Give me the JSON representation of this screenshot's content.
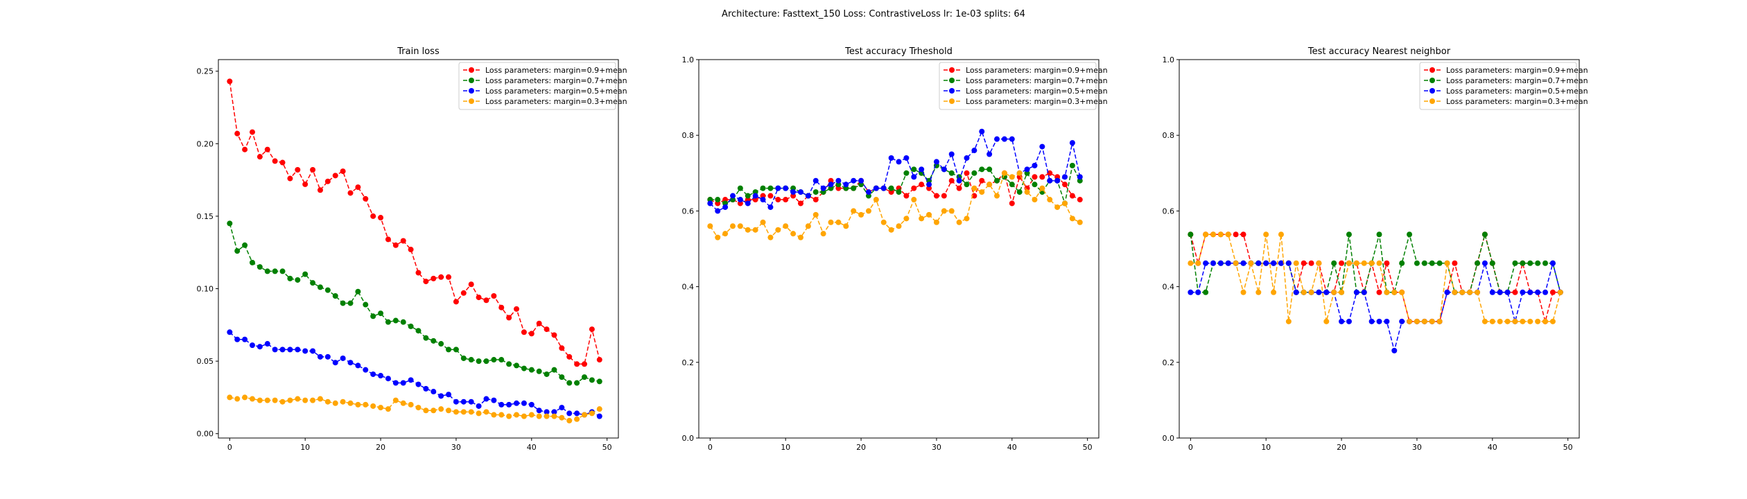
{
  "figure": {
    "suptitle": "Architecture: Fasttext_150 Loss: ContrastiveLoss lr: 1e-03 splits: 64"
  },
  "chart_data": [
    {
      "type": "line",
      "title": "Train loss",
      "xlim": [
        -1.5,
        51.5
      ],
      "ylim": [
        -0.003,
        0.258
      ],
      "xticks": [
        0,
        10,
        20,
        30,
        40,
        50
      ],
      "xtick_labels": [
        "0",
        "10",
        "20",
        "30",
        "40",
        "50"
      ],
      "yticks": [
        0.0,
        0.05,
        0.1,
        0.15,
        0.2,
        0.25
      ],
      "ytick_labels": [
        "0.00",
        "0.05",
        "0.10",
        "0.15",
        "0.20",
        "0.25"
      ],
      "legend_position": "top-right",
      "series": [
        {
          "name": "Loss parameters: margin=0.9+mean",
          "color": "#ff0000",
          "values": [
            0.243,
            0.207,
            0.196,
            0.208,
            0.191,
            0.196,
            0.188,
            0.187,
            0.176,
            0.182,
            0.172,
            0.182,
            0.168,
            0.174,
            0.178,
            0.181,
            0.166,
            0.17,
            0.162,
            0.15,
            0.149,
            0.134,
            0.13,
            0.133,
            0.127,
            0.111,
            0.105,
            0.107,
            0.108,
            0.108,
            0.091,
            0.097,
            0.103,
            0.094,
            0.092,
            0.095,
            0.087,
            0.08,
            0.086,
            0.07,
            0.069,
            0.076,
            0.072,
            0.068,
            0.059,
            0.053,
            0.048,
            0.048,
            0.072,
            0.051
          ]
        },
        {
          "name": "Loss parameters: margin=0.7+mean",
          "color": "#008000",
          "values": [
            0.145,
            0.126,
            0.13,
            0.118,
            0.115,
            0.112,
            0.112,
            0.112,
            0.107,
            0.106,
            0.11,
            0.104,
            0.101,
            0.099,
            0.095,
            0.09,
            0.09,
            0.098,
            0.089,
            0.081,
            0.083,
            0.077,
            0.078,
            0.077,
            0.074,
            0.071,
            0.066,
            0.064,
            0.062,
            0.058,
            0.058,
            0.052,
            0.051,
            0.05,
            0.05,
            0.051,
            0.051,
            0.048,
            0.047,
            0.045,
            0.044,
            0.043,
            0.041,
            0.044,
            0.039,
            0.035,
            0.035,
            0.039,
            0.037,
            0.036
          ]
        },
        {
          "name": "Loss parameters: margin=0.5+mean",
          "color": "#0000ff",
          "values": [
            0.07,
            0.065,
            0.065,
            0.061,
            0.06,
            0.062,
            0.058,
            0.058,
            0.058,
            0.058,
            0.057,
            0.057,
            0.053,
            0.053,
            0.049,
            0.052,
            0.049,
            0.047,
            0.044,
            0.041,
            0.04,
            0.038,
            0.035,
            0.035,
            0.037,
            0.034,
            0.031,
            0.029,
            0.026,
            0.027,
            0.022,
            0.022,
            0.022,
            0.019,
            0.024,
            0.023,
            0.02,
            0.02,
            0.021,
            0.021,
            0.02,
            0.016,
            0.015,
            0.015,
            0.018,
            0.014,
            0.014,
            0.013,
            0.015,
            0.012
          ]
        },
        {
          "name": "Loss parameters: margin=0.3+mean",
          "color": "#ffa500",
          "values": [
            0.025,
            0.024,
            0.025,
            0.024,
            0.023,
            0.023,
            0.023,
            0.022,
            0.023,
            0.024,
            0.023,
            0.023,
            0.024,
            0.022,
            0.021,
            0.022,
            0.021,
            0.02,
            0.02,
            0.019,
            0.018,
            0.017,
            0.023,
            0.021,
            0.02,
            0.018,
            0.016,
            0.016,
            0.017,
            0.016,
            0.015,
            0.015,
            0.015,
            0.014,
            0.015,
            0.013,
            0.013,
            0.012,
            0.013,
            0.012,
            0.013,
            0.012,
            0.012,
            0.012,
            0.011,
            0.009,
            0.01,
            0.013,
            0.014,
            0.017
          ]
        }
      ]
    },
    {
      "type": "line",
      "title": "Test accuracy Trheshold",
      "xlim": [
        -1.5,
        51.5
      ],
      "ylim": [
        0.0,
        1.0
      ],
      "xticks": [
        0,
        10,
        20,
        30,
        40,
        50
      ],
      "xtick_labels": [
        "0",
        "10",
        "20",
        "30",
        "40",
        "50"
      ],
      "yticks": [
        0.0,
        0.2,
        0.4,
        0.6,
        0.8,
        1.0
      ],
      "ytick_labels": [
        "0.0",
        "0.2",
        "0.4",
        "0.6",
        "0.8",
        "1.0"
      ],
      "legend_position": "top-right",
      "series": [
        {
          "name": "Loss parameters: margin=0.9+mean",
          "color": "#ff0000",
          "values": [
            0.63,
            0.62,
            0.63,
            0.63,
            0.62,
            0.63,
            0.63,
            0.64,
            0.64,
            0.63,
            0.63,
            0.64,
            0.62,
            0.64,
            0.63,
            0.65,
            0.68,
            0.66,
            0.66,
            0.66,
            0.68,
            0.65,
            0.66,
            0.66,
            0.65,
            0.66,
            0.64,
            0.66,
            0.67,
            0.66,
            0.64,
            0.64,
            0.68,
            0.66,
            0.7,
            0.64,
            0.68,
            0.67,
            0.68,
            0.7,
            0.62,
            0.69,
            0.66,
            0.69,
            0.69,
            0.7,
            0.69,
            0.67,
            0.64,
            0.63
          ]
        },
        {
          "name": "Loss parameters: margin=0.7+mean",
          "color": "#008000",
          "values": [
            0.63,
            0.63,
            0.62,
            0.63,
            0.66,
            0.64,
            0.65,
            0.66,
            0.66,
            0.66,
            0.66,
            0.66,
            0.65,
            0.64,
            0.65,
            0.65,
            0.66,
            0.67,
            0.66,
            0.66,
            0.67,
            0.64,
            0.66,
            0.66,
            0.66,
            0.65,
            0.7,
            0.71,
            0.7,
            0.68,
            0.72,
            0.71,
            0.7,
            0.69,
            0.67,
            0.7,
            0.71,
            0.71,
            0.68,
            0.69,
            0.67,
            0.65,
            0.7,
            0.67,
            0.65,
            0.68,
            0.68,
            0.62,
            0.72,
            0.68
          ]
        },
        {
          "name": "Loss parameters: margin=0.5+mean",
          "color": "#0000ff",
          "values": [
            0.62,
            0.6,
            0.61,
            0.64,
            0.63,
            0.62,
            0.64,
            0.63,
            0.61,
            0.66,
            0.66,
            0.65,
            0.65,
            0.64,
            0.68,
            0.66,
            0.67,
            0.68,
            0.67,
            0.68,
            0.68,
            0.65,
            0.66,
            0.66,
            0.74,
            0.73,
            0.74,
            0.69,
            0.71,
            0.67,
            0.73,
            0.71,
            0.75,
            0.68,
            0.74,
            0.76,
            0.81,
            0.75,
            0.79,
            0.79,
            0.79,
            0.7,
            0.71,
            0.72,
            0.77,
            0.68,
            0.68,
            0.69,
            0.78,
            0.69
          ]
        },
        {
          "name": "Loss parameters: margin=0.3+mean",
          "color": "#ffa500",
          "values": [
            0.56,
            0.53,
            0.54,
            0.56,
            0.56,
            0.55,
            0.55,
            0.57,
            0.53,
            0.55,
            0.56,
            0.54,
            0.53,
            0.56,
            0.59,
            0.54,
            0.57,
            0.57,
            0.56,
            0.6,
            0.59,
            0.6,
            0.63,
            0.57,
            0.55,
            0.56,
            0.58,
            0.63,
            0.58,
            0.59,
            0.57,
            0.6,
            0.6,
            0.57,
            0.58,
            0.66,
            0.65,
            0.67,
            0.64,
            0.7,
            0.69,
            0.7,
            0.65,
            0.63,
            0.66,
            0.63,
            0.61,
            0.62,
            0.58,
            0.57
          ]
        }
      ]
    },
    {
      "type": "line",
      "title": "Test accuracy Nearest neighbor",
      "xlim": [
        -1.5,
        51.5
      ],
      "ylim": [
        0.0,
        1.0
      ],
      "xticks": [
        0,
        10,
        20,
        30,
        40,
        50
      ],
      "xtick_labels": [
        "0",
        "10",
        "20",
        "30",
        "40",
        "50"
      ],
      "yticks": [
        0.0,
        0.2,
        0.4,
        0.6,
        0.8,
        1.0
      ],
      "ytick_labels": [
        "0.0",
        "0.2",
        "0.4",
        "0.6",
        "0.8",
        "1.0"
      ],
      "legend_position": "top-right",
      "series": [
        {
          "name": "Loss parameters: margin=0.9+mean",
          "color": "#ff0000",
          "values": [
            0.538,
            0.462,
            0.538,
            0.538,
            0.538,
            0.538,
            0.538,
            0.538,
            0.462,
            0.462,
            0.462,
            0.462,
            0.462,
            0.462,
            0.385,
            0.462,
            0.462,
            0.462,
            0.385,
            0.385,
            0.462,
            0.462,
            0.462,
            0.385,
            0.462,
            0.385,
            0.462,
            0.385,
            0.385,
            0.308,
            0.308,
            0.308,
            0.308,
            0.308,
            0.385,
            0.462,
            0.385,
            0.385,
            0.462,
            0.538,
            0.462,
            0.385,
            0.385,
            0.385,
            0.462,
            0.385,
            0.385,
            0.308,
            0.385,
            0.385
          ]
        },
        {
          "name": "Loss parameters: margin=0.7+mean",
          "color": "#008000",
          "values": [
            0.538,
            0.385,
            0.385,
            0.462,
            0.462,
            0.462,
            0.462,
            0.462,
            0.462,
            0.462,
            0.462,
            0.462,
            0.462,
            0.462,
            0.385,
            0.385,
            0.385,
            0.385,
            0.385,
            0.462,
            0.385,
            0.538,
            0.385,
            0.385,
            0.462,
            0.538,
            0.385,
            0.385,
            0.462,
            0.538,
            0.462,
            0.462,
            0.462,
            0.462,
            0.462,
            0.385,
            0.385,
            0.385,
            0.462,
            0.538,
            0.462,
            0.385,
            0.385,
            0.462,
            0.462,
            0.462,
            0.462,
            0.462,
            0.462,
            0.385
          ]
        },
        {
          "name": "Loss parameters: margin=0.5+mean",
          "color": "#0000ff",
          "values": [
            0.385,
            0.385,
            0.462,
            0.462,
            0.462,
            0.462,
            0.462,
            0.462,
            0.462,
            0.462,
            0.462,
            0.462,
            0.462,
            0.462,
            0.385,
            0.385,
            0.385,
            0.385,
            0.385,
            0.385,
            0.308,
            0.308,
            0.385,
            0.385,
            0.308,
            0.308,
            0.308,
            0.231,
            0.308,
            0.308,
            0.308,
            0.308,
            0.308,
            0.308,
            0.385,
            0.385,
            0.385,
            0.385,
            0.385,
            0.462,
            0.385,
            0.385,
            0.385,
            0.308,
            0.385,
            0.385,
            0.385,
            0.385,
            0.462,
            0.385
          ]
        },
        {
          "name": "Loss parameters: margin=0.3+mean",
          "color": "#ffa500",
          "values": [
            0.462,
            0.462,
            0.538,
            0.538,
            0.538,
            0.538,
            0.462,
            0.385,
            0.462,
            0.385,
            0.538,
            0.385,
            0.538,
            0.308,
            0.462,
            0.385,
            0.385,
            0.462,
            0.308,
            0.385,
            0.385,
            0.462,
            0.462,
            0.462,
            0.462,
            0.462,
            0.385,
            0.385,
            0.385,
            0.308,
            0.308,
            0.308,
            0.308,
            0.308,
            0.462,
            0.385,
            0.385,
            0.385,
            0.385,
            0.308,
            0.308,
            0.308,
            0.308,
            0.308,
            0.308,
            0.308,
            0.308,
            0.308,
            0.308,
            0.385
          ]
        }
      ]
    }
  ]
}
